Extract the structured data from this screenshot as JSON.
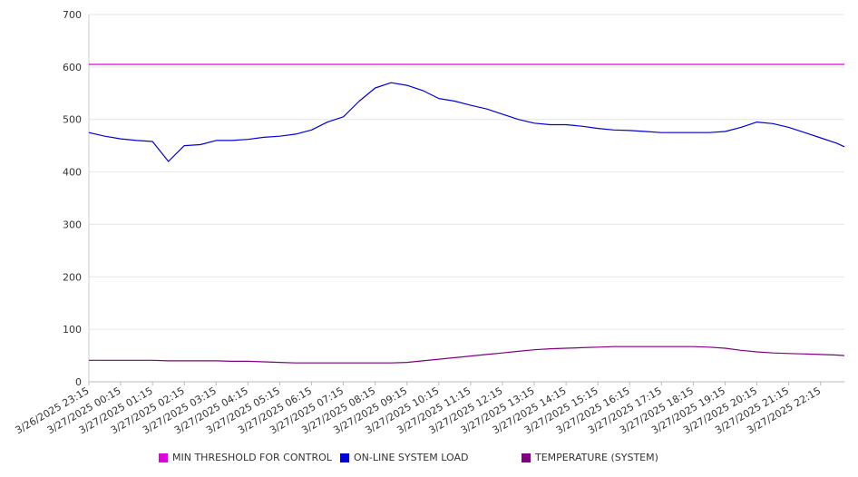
{
  "chart_data": {
    "type": "line",
    "title": "",
    "xlabel": "",
    "ylabel": "",
    "ylim": [
      0,
      700
    ],
    "yticks": [
      0,
      100,
      200,
      300,
      400,
      500,
      600,
      700
    ],
    "grid": true,
    "legend_position": "bottom",
    "x_tick_labels": [
      "3/26/2025 23:15",
      "3/27/2025 00:15",
      "3/27/2025 01:15",
      "3/27/2025 02:15",
      "3/27/2025 03:15",
      "3/27/2025 04:15",
      "3/27/2025 05:15",
      "3/27/2025 06:15",
      "3/27/2025 07:15",
      "3/27/2025 08:15",
      "3/27/2025 09:15",
      "3/27/2025 10:15",
      "3/27/2025 11:15",
      "3/27/2025 12:15",
      "3/27/2025 13:15",
      "3/27/2025 14:15",
      "3/27/2025 15:15",
      "3/27/2025 16:15",
      "3/27/2025 17:15",
      "3/27/2025 18:15",
      "3/27/2025 19:15",
      "3/27/2025 20:15",
      "3/27/2025 21:15",
      "3/27/2025 22:15"
    ],
    "x_hours": [
      0,
      0.5,
      1,
      1.5,
      2,
      2.5,
      3,
      3.5,
      4,
      4.5,
      5,
      5.5,
      6,
      6.5,
      7,
      7.5,
      8,
      8.5,
      9,
      9.5,
      10,
      10.5,
      11,
      11.5,
      12,
      12.5,
      13,
      13.5,
      14,
      14.5,
      15,
      15.5,
      16,
      16.5,
      17,
      17.5,
      18,
      18.5,
      19,
      19.5,
      20,
      20.5,
      21,
      21.5,
      22,
      22.5,
      23,
      23.5,
      23.75
    ],
    "series": [
      {
        "name": "MIN THRESHOLD FOR CONTROL",
        "color": "#e000e0",
        "values": [
          605,
          605,
          605,
          605,
          605,
          605,
          605,
          605,
          605,
          605,
          605,
          605,
          605,
          605,
          605,
          605,
          605,
          605,
          605,
          605,
          605,
          605,
          605,
          605,
          605,
          605,
          605,
          605,
          605,
          605,
          605,
          605,
          605,
          605,
          605,
          605,
          605,
          605,
          605,
          605,
          605,
          605,
          605,
          605,
          605,
          605,
          605,
          605,
          605
        ]
      },
      {
        "name": "ON-LINE SYSTEM LOAD",
        "color": "#0000dd",
        "values": [
          475,
          468,
          463,
          460,
          458,
          420,
          450,
          452,
          460,
          460,
          462,
          466,
          468,
          472,
          480,
          495,
          505,
          535,
          560,
          570,
          565,
          555,
          540,
          535,
          527,
          520,
          510,
          500,
          493,
          490,
          490,
          487,
          483,
          480,
          479,
          477,
          475,
          475,
          475,
          475,
          477,
          485,
          495,
          492,
          485,
          475,
          465,
          455,
          448
        ]
      },
      {
        "name": "TEMPERATURE (SYSTEM)",
        "color": "#800080",
        "values": [
          41,
          41,
          41,
          41,
          41,
          40,
          40,
          40,
          40,
          39,
          39,
          38,
          37,
          36,
          36,
          36,
          36,
          36,
          36,
          36,
          37,
          40,
          43,
          46,
          49,
          52,
          55,
          58,
          61,
          63,
          64,
          65,
          66,
          67,
          67,
          67,
          67,
          67,
          67,
          66,
          64,
          60,
          57,
          55,
          54,
          53,
          52,
          51,
          50
        ]
      }
    ]
  }
}
